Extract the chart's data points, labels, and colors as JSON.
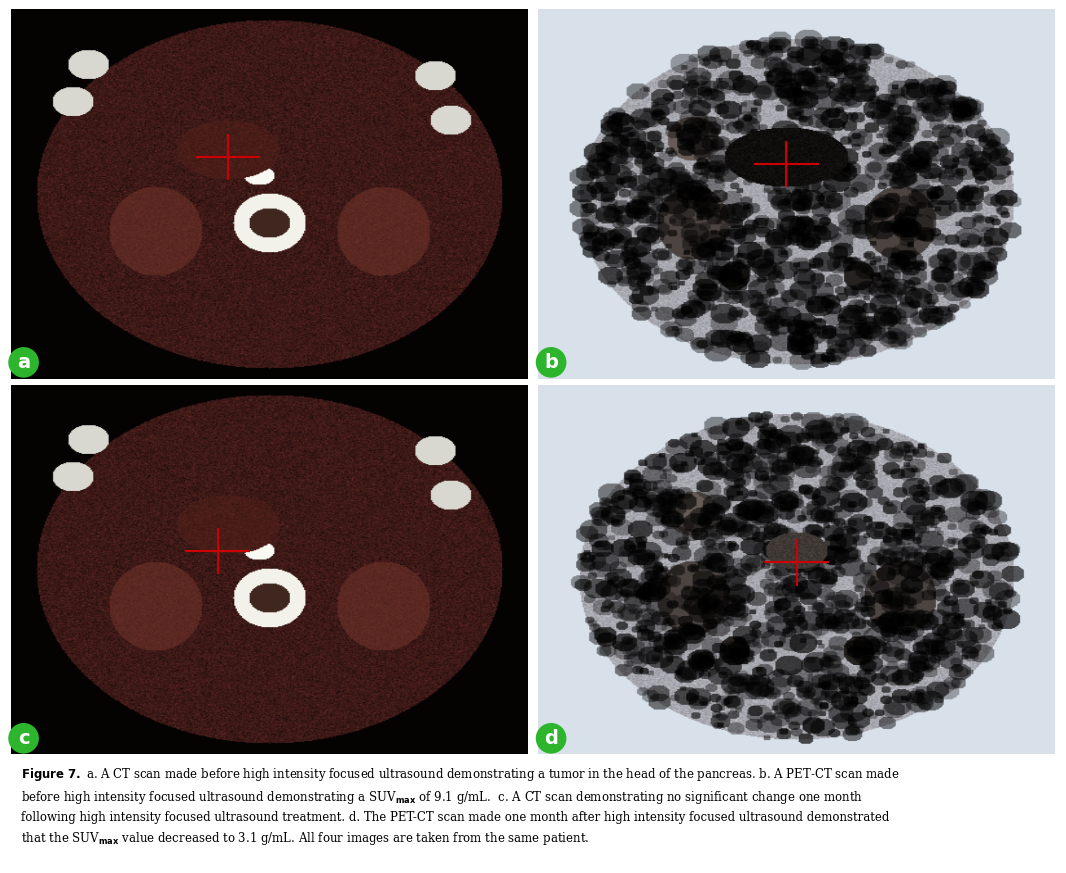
{
  "figure_width": 10.66,
  "figure_height": 8.73,
  "bg_color": "#ffffff",
  "caption": "Figure 7. a. A CT scan made before high intensity focused ultrasound demonstrating a tumor in the head of the pancreas. b. A PET-CT scan made before high intensity focused ultrasound demonstrating a SUVₘₐₓ of 9.1 g/mL. c. A CT scan demonstrating no significant change one month following high intensity focused ultrasound treatment. d. The PET-CT scan made one month after high intensity focused ultrasound demonstrated that the SUVₘₐₓ value decreased to 3.1 g/mL. All four images are taken from the same patient.",
  "caption_bold_prefix": "Figure 7.",
  "panel_labels": [
    "a",
    "b",
    "c",
    "d"
  ],
  "label_bg_color": "#2db52d",
  "label_text_color": "#ffffff",
  "crosshair_color": "#cc0000",
  "panel_a_bg": "#000000",
  "panel_b_bg": "#c8d4e0",
  "panel_c_bg": "#000000",
  "panel_d_bg": "#c8d4e0"
}
